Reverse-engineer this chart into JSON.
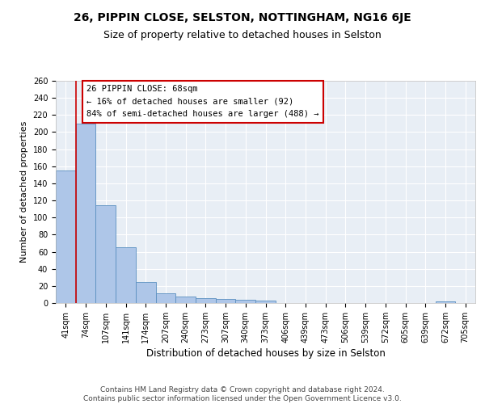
{
  "title1": "26, PIPPIN CLOSE, SELSTON, NOTTINGHAM, NG16 6JE",
  "title2": "Size of property relative to detached houses in Selston",
  "xlabel": "Distribution of detached houses by size in Selston",
  "ylabel": "Number of detached properties",
  "categories": [
    "41sqm",
    "74sqm",
    "107sqm",
    "141sqm",
    "174sqm",
    "207sqm",
    "240sqm",
    "273sqm",
    "307sqm",
    "340sqm",
    "373sqm",
    "406sqm",
    "439sqm",
    "473sqm",
    "506sqm",
    "539sqm",
    "572sqm",
    "605sqm",
    "639sqm",
    "672sqm",
    "705sqm"
  ],
  "values": [
    155,
    210,
    114,
    65,
    25,
    11,
    8,
    6,
    5,
    4,
    3,
    0,
    0,
    0,
    0,
    0,
    0,
    0,
    0,
    2,
    0
  ],
  "bar_color": "#aec6e8",
  "bar_edge_color": "#5a8fc0",
  "marker_line_color": "#cc0000",
  "ylim": [
    0,
    260
  ],
  "yticks": [
    0,
    20,
    40,
    60,
    80,
    100,
    120,
    140,
    160,
    180,
    200,
    220,
    240,
    260
  ],
  "annotation_text": "26 PIPPIN CLOSE: 68sqm\n← 16% of detached houses are smaller (92)\n84% of semi-detached houses are larger (488) →",
  "annotation_box_color": "#ffffff",
  "annotation_box_edge": "#cc0000",
  "footer_text": "Contains HM Land Registry data © Crown copyright and database right 2024.\nContains public sector information licensed under the Open Government Licence v3.0.",
  "background_color": "#e8eef5",
  "grid_color": "#ffffff",
  "title1_fontsize": 10,
  "title2_fontsize": 9,
  "xlabel_fontsize": 8.5,
  "ylabel_fontsize": 8,
  "tick_fontsize": 7,
  "annotation_fontsize": 7.5,
  "footer_fontsize": 6.5
}
